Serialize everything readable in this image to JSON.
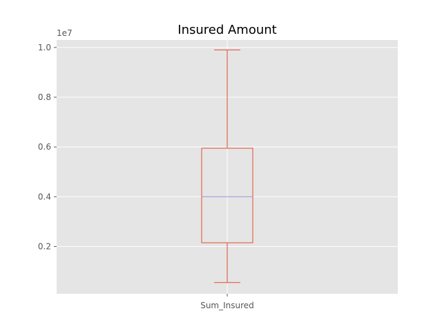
{
  "chart_data": {
    "type": "box",
    "title": "Insured Amount",
    "xlabel": "",
    "ylabel": "",
    "categories": [
      "Sum_Insured"
    ],
    "y_offset_label": "1e7",
    "yticks": [
      0.2,
      0.4,
      0.6,
      0.8,
      1.0
    ],
    "ytick_labels": [
      "0.2",
      "0.4",
      "0.6",
      "0.8",
      "1.0"
    ],
    "ylim": [
      0.01,
      1.03
    ],
    "boxes": [
      {
        "name": "Sum_Insured",
        "whisker_low": 0.055,
        "q1": 0.215,
        "median": 0.4,
        "q3": 0.595,
        "whisker_high": 0.99
      }
    ],
    "grid": true,
    "colors": {
      "background": "#e5e5e5",
      "grid": "#ffffff",
      "box": "#e24a33",
      "median": "#988ed5",
      "tick": "#555555"
    }
  }
}
